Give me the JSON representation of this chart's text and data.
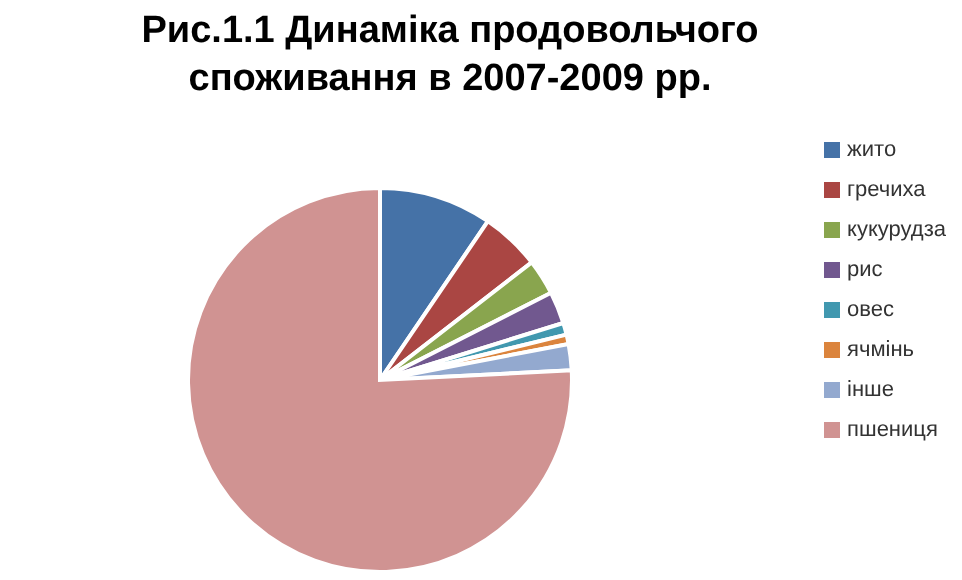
{
  "chart_data": {
    "type": "pie",
    "title": "Рис.1.1 Динаміка продовольчого споживання в 2007-2009 рр.",
    "categories": [
      "жито",
      "гречиха",
      "кукурудза",
      "рис",
      "овес",
      "ячмінь",
      "інше",
      "пшениця"
    ],
    "values": [
      9.5,
      5,
      3,
      2.7,
      1,
      0.8,
      2.2,
      75.8
    ],
    "colors": [
      "#4572a7",
      "#aa4643",
      "#89a54e",
      "#71588f",
      "#4198af",
      "#db843d",
      "#93a9cf",
      "#d09392"
    ],
    "legend": "right"
  }
}
